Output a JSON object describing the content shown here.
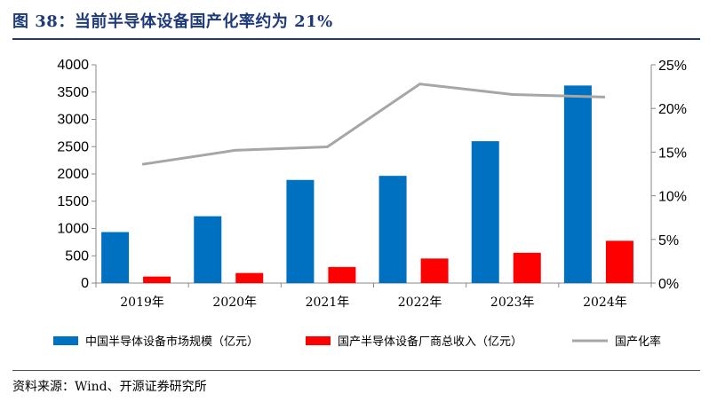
{
  "header": {
    "title": "图 38：当前半导体设备国产化率约为 21%",
    "source": "资料来源：Wind、开源证券研究所"
  },
  "chart_data": {
    "type": "bar",
    "title": "",
    "categories": [
      "2019年",
      "2020年",
      "2021年",
      "2022年",
      "2023年",
      "2024年"
    ],
    "series": [
      {
        "name": "中国半导体设备市场规模（亿元）",
        "type": "bar",
        "axis": "left",
        "color": "#0070c0",
        "values": [
          935,
          1225,
          1890,
          1965,
          2600,
          3620
        ]
      },
      {
        "name": "国产半导体设备厂商总收入（亿元）",
        "type": "bar",
        "axis": "left",
        "color": "#ff0000",
        "values": [
          120,
          185,
          295,
          450,
          555,
          775
        ]
      },
      {
        "name": "国产化率",
        "type": "line",
        "axis": "right",
        "color": "#a6a6a6",
        "values": [
          13.6,
          15.2,
          15.6,
          22.8,
          21.6,
          21.3
        ]
      }
    ],
    "y_left": {
      "min": 0,
      "max": 4000,
      "ticks": [
        "0",
        "500",
        "1000",
        "1500",
        "2000",
        "2500",
        "3000",
        "3500",
        "4000"
      ]
    },
    "y_right": {
      "min": 0,
      "max": 25,
      "ticks": [
        "0%",
        "5%",
        "10%",
        "15%",
        "20%",
        "25%"
      ]
    },
    "grid": false,
    "legend_position": "bottom"
  }
}
